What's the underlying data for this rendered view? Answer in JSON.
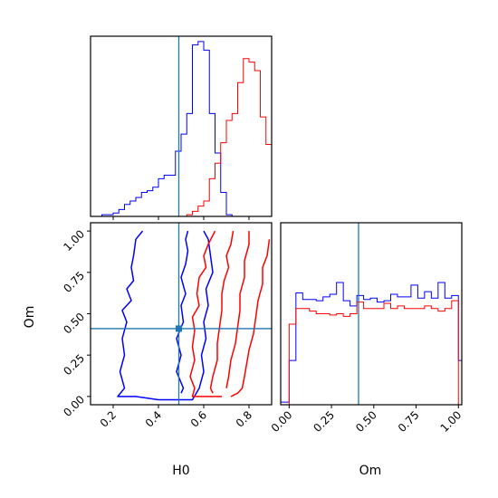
{
  "chart_data": [
    {
      "type": "histogram",
      "panel": "H0 marginal",
      "xlim": [
        0.1,
        0.9
      ],
      "truth": 0.49,
      "bins": [
        0.1,
        0.125,
        0.15,
        0.175,
        0.2,
        0.225,
        0.25,
        0.275,
        0.3,
        0.325,
        0.35,
        0.375,
        0.4,
        0.425,
        0.45,
        0.475,
        0.5,
        0.525,
        0.55,
        0.575,
        0.6,
        0.625,
        0.65,
        0.675,
        0.7,
        0.725,
        0.75,
        0.775,
        0.8,
        0.825,
        0.85,
        0.875,
        0.9
      ],
      "series": [
        {
          "color": "#0000ff",
          "values": [
            0,
            0,
            1,
            1,
            2,
            4,
            7,
            9,
            11,
            14,
            15,
            17,
            22,
            24,
            24,
            38,
            48,
            60,
            100,
            102,
            97,
            60,
            37,
            14,
            1,
            0,
            0,
            0,
            0,
            0,
            0,
            0
          ]
        },
        {
          "color": "#ff0000",
          "values": [
            0,
            0,
            0,
            0,
            0,
            0,
            0,
            0,
            0,
            0,
            0,
            0,
            0,
            0,
            0,
            0,
            0,
            1,
            3,
            6,
            9,
            22,
            31,
            43,
            56,
            60,
            78,
            92,
            90,
            85,
            58,
            42
          ]
        }
      ]
    },
    {
      "type": "histogram",
      "panel": "Om marginal",
      "xlim": [
        -0.05,
        1.02
      ],
      "truth": 0.41,
      "bins": [
        -0.05,
        0,
        0.04,
        0.08,
        0.12,
        0.16,
        0.2,
        0.24,
        0.28,
        0.32,
        0.36,
        0.4,
        0.44,
        0.48,
        0.52,
        0.56,
        0.6,
        0.64,
        0.68,
        0.72,
        0.76,
        0.8,
        0.84,
        0.88,
        0.92,
        0.96,
        1.0,
        1.02
      ],
      "x_ticks": [
        "0.00",
        "0.25",
        "0.50",
        "0.75",
        "1.00"
      ],
      "series": [
        {
          "color": "#0000ff",
          "values": [
            2,
            34,
            86,
            81,
            81,
            80,
            83,
            85,
            94,
            80,
            76,
            84,
            81,
            82,
            79,
            80,
            85,
            83,
            83,
            92,
            82,
            87,
            82,
            94,
            82,
            84,
            34
          ]
        },
        {
          "color": "#ff0000",
          "values": [
            0,
            62,
            74,
            74,
            72,
            70,
            70,
            69,
            70,
            68,
            70,
            79,
            74,
            74,
            74,
            78,
            74,
            76,
            74,
            74,
            74,
            76,
            74,
            72,
            74,
            80,
            0
          ]
        }
      ]
    },
    {
      "type": "contour",
      "panel": "H0 vs Om",
      "xlabel": "H0",
      "ylabel": "Om",
      "xlim": [
        0.1,
        0.9
      ],
      "ylim": [
        -0.05,
        1.05
      ],
      "x_ticks": [
        "0.2",
        "0.4",
        "0.6",
        "0.8"
      ],
      "y_ticks": [
        "0.00",
        "0.25",
        "0.50",
        "0.75",
        "1.00"
      ],
      "truth": [
        0.49,
        0.41
      ],
      "series": [
        {
          "color": "#0000ff",
          "contours": [
            [
              [
                0.33,
                1.0
              ],
              [
                0.3,
                0.95
              ],
              [
                0.29,
                0.85
              ],
              [
                0.28,
                0.78
              ],
              [
                0.29,
                0.7
              ],
              [
                0.26,
                0.65
              ],
              [
                0.28,
                0.58
              ],
              [
                0.24,
                0.52
              ],
              [
                0.26,
                0.45
              ],
              [
                0.24,
                0.35
              ],
              [
                0.25,
                0.25
              ],
              [
                0.23,
                0.15
              ],
              [
                0.25,
                0.05
              ],
              [
                0.22,
                0.0
              ],
              [
                0.3,
                0.0
              ],
              [
                0.4,
                -0.02
              ],
              [
                0.55,
                -0.02
              ],
              [
                0.58,
                0.05
              ],
              [
                0.6,
                0.15
              ],
              [
                0.59,
                0.25
              ],
              [
                0.61,
                0.35
              ],
              [
                0.6,
                0.45
              ],
              [
                0.62,
                0.55
              ],
              [
                0.61,
                0.65
              ],
              [
                0.64,
                0.75
              ],
              [
                0.63,
                0.85
              ],
              [
                0.62,
                0.95
              ],
              [
                0.6,
                1.0
              ]
            ],
            [
              [
                0.53,
                1.0
              ],
              [
                0.52,
                0.95
              ],
              [
                0.53,
                0.88
              ],
              [
                0.52,
                0.8
              ],
              [
                0.5,
                0.72
              ],
              [
                0.52,
                0.62
              ],
              [
                0.5,
                0.55
              ],
              [
                0.51,
                0.45
              ],
              [
                0.48,
                0.35
              ],
              [
                0.5,
                0.25
              ],
              [
                0.48,
                0.15
              ],
              [
                0.51,
                0.05
              ],
              [
                0.5,
                0.02
              ]
            ]
          ]
        },
        {
          "color": "#ff0000",
          "contours": [
            [
              [
                0.65,
                1.0
              ],
              [
                0.62,
                0.92
              ],
              [
                0.6,
                0.85
              ],
              [
                0.61,
                0.78
              ],
              [
                0.58,
                0.72
              ],
              [
                0.57,
                0.62
              ],
              [
                0.58,
                0.55
              ],
              [
                0.55,
                0.48
              ],
              [
                0.56,
                0.4
              ],
              [
                0.55,
                0.3
              ],
              [
                0.56,
                0.22
              ],
              [
                0.54,
                0.12
              ],
              [
                0.56,
                0.05
              ],
              [
                0.55,
                0.0
              ],
              [
                0.62,
                0.0
              ],
              [
                0.68,
                0.0
              ]
            ],
            [
              [
                0.89,
                0.95
              ],
              [
                0.88,
                0.85
              ],
              [
                0.86,
                0.78
              ],
              [
                0.86,
                0.68
              ],
              [
                0.84,
                0.58
              ],
              [
                0.83,
                0.48
              ],
              [
                0.82,
                0.38
              ],
              [
                0.8,
                0.28
              ],
              [
                0.79,
                0.2
              ],
              [
                0.78,
                0.12
              ],
              [
                0.77,
                0.05
              ],
              [
                0.75,
                0.02
              ],
              [
                0.72,
                0.0
              ]
            ],
            [
              [
                0.73,
                1.0
              ],
              [
                0.72,
                0.92
              ],
              [
                0.7,
                0.85
              ],
              [
                0.71,
                0.78
              ],
              [
                0.69,
                0.7
              ],
              [
                0.68,
                0.62
              ],
              [
                0.68,
                0.52
              ],
              [
                0.67,
                0.42
              ],
              [
                0.66,
                0.32
              ],
              [
                0.66,
                0.22
              ],
              [
                0.64,
                0.12
              ],
              [
                0.63,
                0.05
              ],
              [
                0.64,
                0.02
              ]
            ],
            [
              [
                0.8,
                1.0
              ],
              [
                0.8,
                0.92
              ],
              [
                0.78,
                0.82
              ],
              [
                0.78,
                0.72
              ],
              [
                0.76,
                0.62
              ],
              [
                0.76,
                0.52
              ],
              [
                0.75,
                0.42
              ],
              [
                0.74,
                0.32
              ],
              [
                0.72,
                0.22
              ],
              [
                0.71,
                0.12
              ],
              [
                0.7,
                0.05
              ]
            ]
          ]
        }
      ]
    }
  ],
  "colors": {
    "truth_line": "#1f77b4",
    "axes": "#000000"
  }
}
